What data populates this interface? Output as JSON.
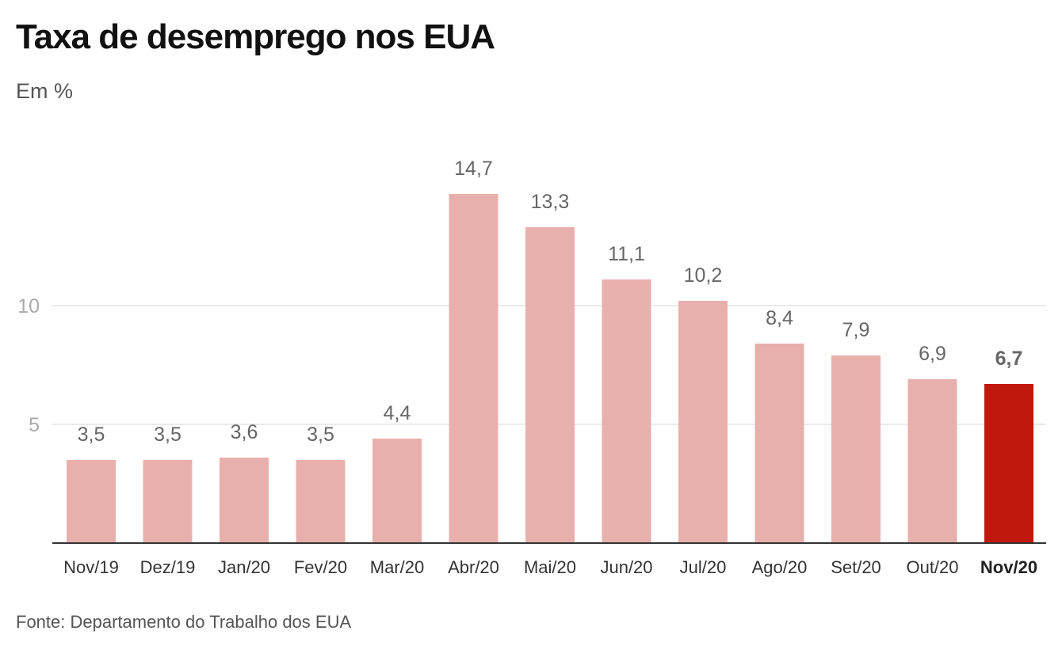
{
  "title": "Taxa de desemprego nos EUA",
  "subtitle": "Em %",
  "source": "Fonte: Departamento do Trabalho dos EUA",
  "colors": {
    "bar": "#e8b0ac",
    "highlight": "#c0180c",
    "grid": "#e3e3e3",
    "axis": "#333333",
    "tick_text": "#aaaaaa",
    "value_text": "#666666",
    "category_text": "#333333"
  },
  "chart_data": {
    "type": "bar",
    "title": "Taxa de desemprego nos EUA",
    "subtitle": "Em %",
    "xlabel": "",
    "ylabel": "",
    "ylim": [
      0,
      16.2
    ],
    "yticks": [
      5,
      10
    ],
    "ytick_labels": [
      "5",
      "10"
    ],
    "grid": true,
    "legend": "none",
    "categories": [
      "Nov/19",
      "Dez/19",
      "Jan/20",
      "Fev/20",
      "Mar/20",
      "Abr/20",
      "Mai/20",
      "Jun/20",
      "Jul/20",
      "Ago/20",
      "Set/20",
      "Out/20",
      "Nov/20"
    ],
    "values": [
      3.5,
      3.5,
      3.6,
      3.5,
      4.4,
      14.7,
      13.3,
      11.1,
      10.2,
      8.4,
      7.9,
      6.9,
      6.7
    ],
    "value_labels": [
      "3,5",
      "3,5",
      "3,6",
      "3,5",
      "4,4",
      "14,7",
      "13,3",
      "11,1",
      "10,2",
      "8,4",
      "7,9",
      "6,9",
      "6,7"
    ],
    "highlight_category": "Nov/20"
  }
}
